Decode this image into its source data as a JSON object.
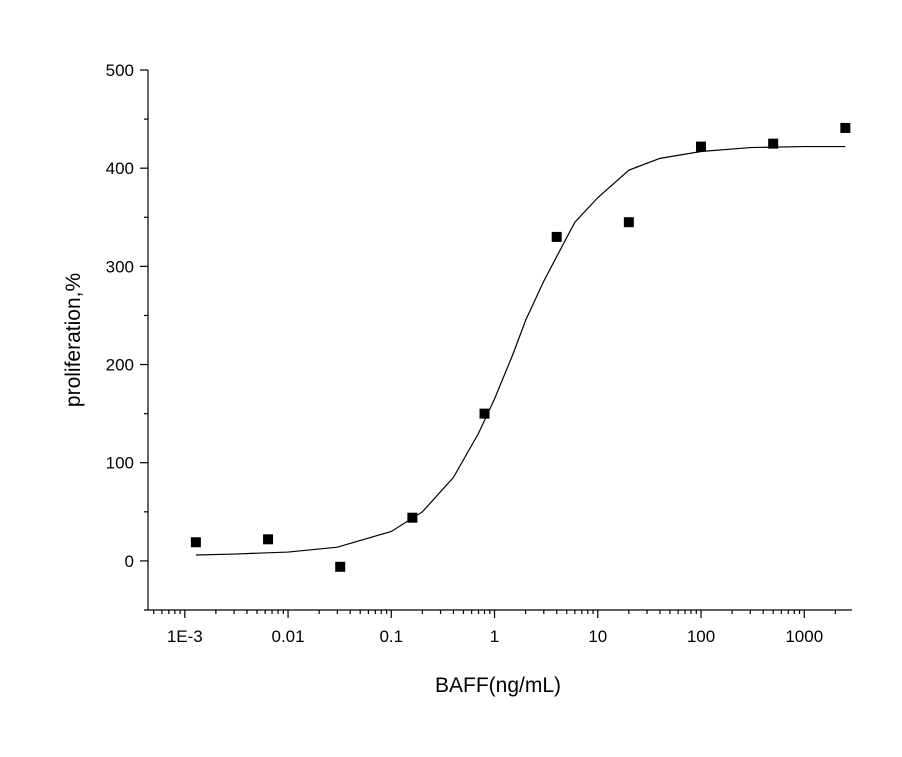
{
  "chart_data": {
    "type": "scatter",
    "xlabel": "BAFF(ng/mL)",
    "ylabel": "proliferation,%",
    "xscale": "log",
    "xlim": [
      0.00044,
      2900
    ],
    "ylim": [
      -50,
      500
    ],
    "xticks": [
      {
        "value": 0.001,
        "label": "1E-3"
      },
      0.01,
      0.1,
      1,
      10,
      100,
      1000
    ],
    "xminorticks": [
      0.0005,
      0.0006,
      0.0007,
      0.0008,
      0.0009,
      0.002,
      0.003,
      0.004,
      0.005,
      0.006,
      0.007,
      0.008,
      0.009,
      0.02,
      0.03,
      0.04,
      0.05,
      0.06,
      0.07,
      0.08,
      0.09,
      0.2,
      0.3,
      0.4,
      0.5,
      0.6,
      0.7,
      0.8,
      0.9,
      2,
      3,
      4,
      5,
      6,
      7,
      8,
      9,
      20,
      30,
      40,
      50,
      60,
      70,
      80,
      90,
      200,
      300,
      400,
      500,
      600,
      700,
      800,
      900,
      2000
    ],
    "yticks": [
      0,
      100,
      200,
      300,
      400,
      500
    ],
    "yminorticks": [
      -50,
      50,
      150,
      250,
      350,
      450
    ],
    "series": [
      {
        "marker": "square",
        "color": "#000000",
        "x": [
          0.00128,
          0.0064,
          0.032,
          0.16,
          0.8,
          4,
          20,
          100,
          500,
          2500
        ],
        "values": [
          19,
          22,
          -6,
          44,
          150,
          330,
          345,
          422,
          425,
          441
        ]
      },
      {
        "marker": "line",
        "color": "#000000",
        "x": [
          0.00128,
          0.003,
          0.01,
          0.03,
          0.1,
          0.2,
          0.4,
          0.7,
          1,
          1.5,
          2,
          3,
          4,
          6,
          10,
          20,
          40,
          100,
          300,
          1000,
          2500
        ],
        "values": [
          6,
          7,
          9,
          14,
          30,
          50,
          85,
          130,
          165,
          210,
          245,
          285,
          310,
          345,
          370,
          398,
          410,
          417,
          421,
          422,
          422
        ]
      }
    ]
  }
}
